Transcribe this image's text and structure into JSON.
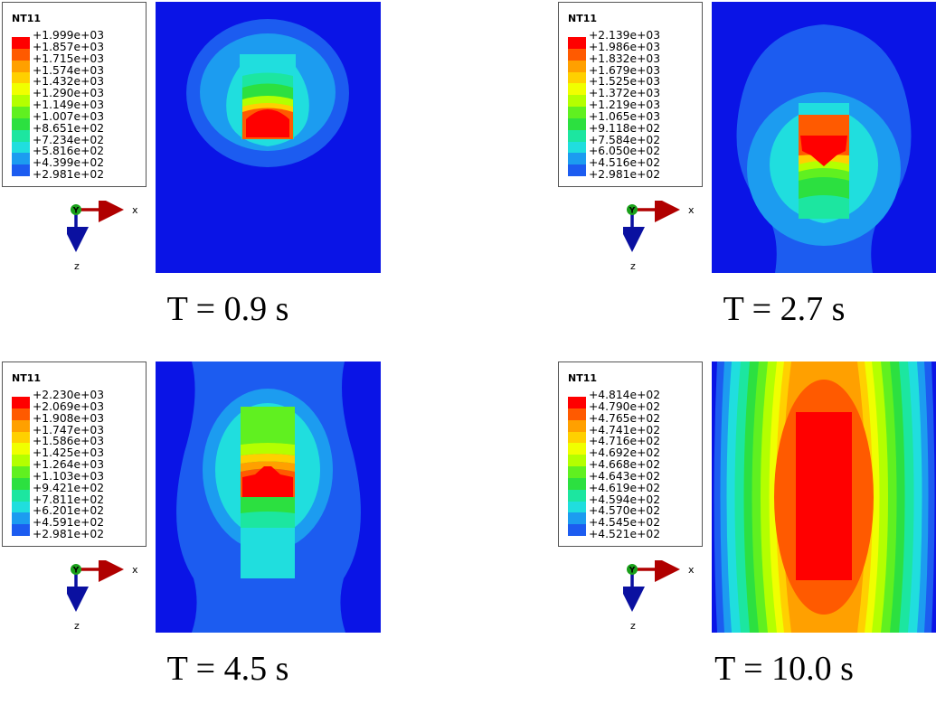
{
  "panels": [
    {
      "variable": "NT11",
      "time_label": "T = 0.9 s",
      "legend_values": [
        "+1.999e+03",
        "+1.857e+03",
        "+1.715e+03",
        "+1.574e+03",
        "+1.432e+03",
        "+1.290e+03",
        "+1.149e+03",
        "+1.007e+03",
        "+8.651e+02",
        "+7.234e+02",
        "+5.816e+02",
        "+4.399e+02",
        "+2.981e+02"
      ],
      "axis_labels": {
        "y": "Y",
        "x": "x",
        "z": "z"
      }
    },
    {
      "variable": "NT11",
      "time_label": "T = 2.7 s",
      "legend_values": [
        "+2.139e+03",
        "+1.986e+03",
        "+1.832e+03",
        "+1.679e+03",
        "+1.525e+03",
        "+1.372e+03",
        "+1.219e+03",
        "+1.065e+03",
        "+9.118e+02",
        "+7.584e+02",
        "+6.050e+02",
        "+4.516e+02",
        "+2.981e+02"
      ],
      "axis_labels": {
        "y": "Y",
        "x": "x",
        "z": "z"
      }
    },
    {
      "variable": "NT11",
      "time_label": "T = 4.5 s",
      "legend_values": [
        "+2.230e+03",
        "+2.069e+03",
        "+1.908e+03",
        "+1.747e+03",
        "+1.586e+03",
        "+1.425e+03",
        "+1.264e+03",
        "+1.103e+03",
        "+9.421e+02",
        "+7.811e+02",
        "+6.201e+02",
        "+4.591e+02",
        "+2.981e+02"
      ],
      "axis_labels": {
        "y": "Y",
        "x": "x",
        "z": "z"
      }
    },
    {
      "variable": "NT11",
      "time_label": "T = 10.0 s",
      "legend_values": [
        "+4.814e+02",
        "+4.790e+02",
        "+4.765e+02",
        "+4.741e+02",
        "+4.716e+02",
        "+4.692e+02",
        "+4.668e+02",
        "+4.643e+02",
        "+4.619e+02",
        "+4.594e+02",
        "+4.570e+02",
        "+4.545e+02",
        "+4.521e+02"
      ],
      "axis_labels": {
        "y": "Y",
        "x": "x",
        "z": "z"
      }
    }
  ],
  "colormap": [
    "#ff0000",
    "#ff5a00",
    "#ffa000",
    "#ffd000",
    "#f0ff00",
    "#b4ff00",
    "#60f020",
    "#2ce040",
    "#1ce6a0",
    "#20dede",
    "#1c9cf0",
    "#1c5cf0",
    "#0a14e6"
  ]
}
